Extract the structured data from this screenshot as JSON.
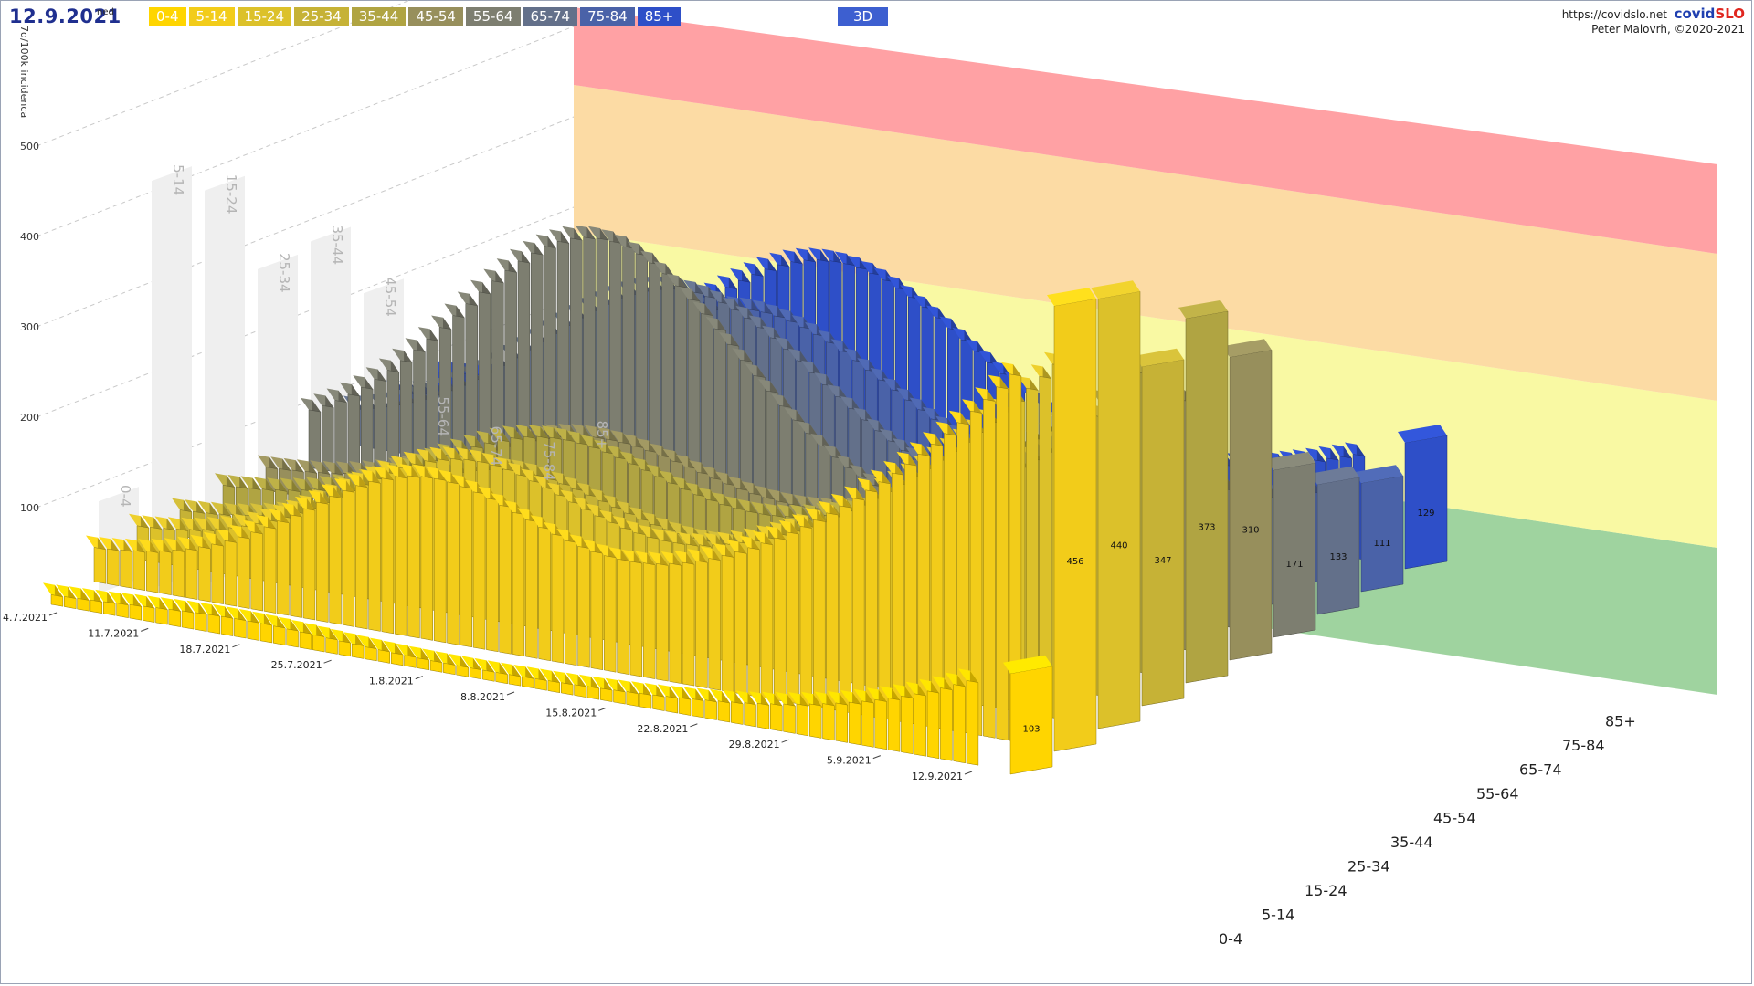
{
  "header": {
    "date": "12.9.2021",
    "weekday": "ned",
    "source_url": "https://covidslo.net",
    "brand_part1": "covid",
    "brand_part2": "SLO",
    "copyright": "Peter Malovrh, ©2020-2021",
    "mode_button": "3D"
  },
  "legend": [
    {
      "label": "0-4",
      "color": "#ffd500"
    },
    {
      "label": "5-14",
      "color": "#f2cc1a"
    },
    {
      "label": "15-24",
      "color": "#dcc12a"
    },
    {
      "label": "25-34",
      "color": "#c6b236"
    },
    {
      "label": "35-44",
      "color": "#b0a442"
    },
    {
      "label": "45-54",
      "color": "#978f5c"
    },
    {
      "label": "55-64",
      "color": "#7d7e70"
    },
    {
      "label": "65-74",
      "color": "#63708a"
    },
    {
      "label": "75-84",
      "color": "#4a62a8"
    },
    {
      "label": "85+",
      "color": "#2e4fc8"
    }
  ],
  "chart_data": {
    "type": "bar",
    "ylabel": "7d/100k incidenca",
    "ylim": [
      0,
      500
    ],
    "yticks": [
      100,
      200,
      300,
      400,
      500
    ],
    "zones": [
      {
        "from": 0,
        "to": 140,
        "color": "#7fc47f"
      },
      {
        "from": 140,
        "to": 280,
        "color": "#f7f784"
      },
      {
        "from": 280,
        "to": 420,
        "color": "#fbcf86"
      },
      {
        "from": 420,
        "to": 560,
        "color": "#ff8286"
      }
    ],
    "date_labels": [
      "4.7.2021",
      "11.7.2021",
      "18.7.2021",
      "25.7.2021",
      "1.8.2021",
      "8.8.2021",
      "15.8.2021",
      "22.8.2021",
      "29.8.2021",
      "5.9.2021",
      "12.9.2021"
    ],
    "series": [
      {
        "name": "0-4",
        "latest": 103
      },
      {
        "name": "5-14",
        "latest": 456
      },
      {
        "name": "15-24",
        "latest": 440
      },
      {
        "name": "25-34",
        "latest": 347
      },
      {
        "name": "35-44",
        "latest": 373
      },
      {
        "name": "45-54",
        "latest": 310
      },
      {
        "name": "55-64",
        "latest": 171
      },
      {
        "name": "65-74",
        "latest": 133
      },
      {
        "name": "75-84",
        "latest": 111
      },
      {
        "name": "85+",
        "latest": 129
      }
    ]
  }
}
